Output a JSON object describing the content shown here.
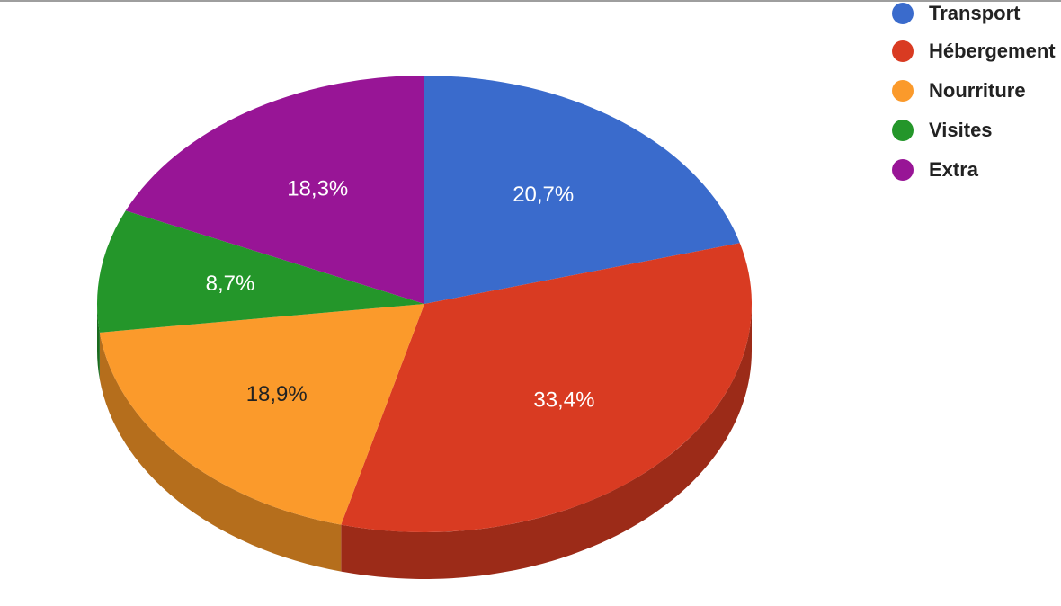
{
  "chart_data": {
    "type": "pie",
    "style": "3d",
    "categories": [
      "Transport",
      "Hébergement",
      "Nourriture",
      "Visites",
      "Extra"
    ],
    "values": [
      20.7,
      33.4,
      18.9,
      8.7,
      18.3
    ],
    "labels": [
      "20,7%",
      "33,4%",
      "18,9%",
      "8,7%",
      "18,3%"
    ],
    "colors": [
      "#3a6bcc",
      "#d93b22",
      "#fb9a2b",
      "#24962a",
      "#981596"
    ],
    "side_colors": [
      "#2a4f99",
      "#9c2b18",
      "#b56e1c",
      "#196b1e",
      "#6e0f6c"
    ],
    "label_colors": [
      "#ffffff",
      "#ffffff",
      "#222222",
      "#ffffff",
      "#ffffff"
    ],
    "legend_position": "top-right",
    "title": ""
  }
}
